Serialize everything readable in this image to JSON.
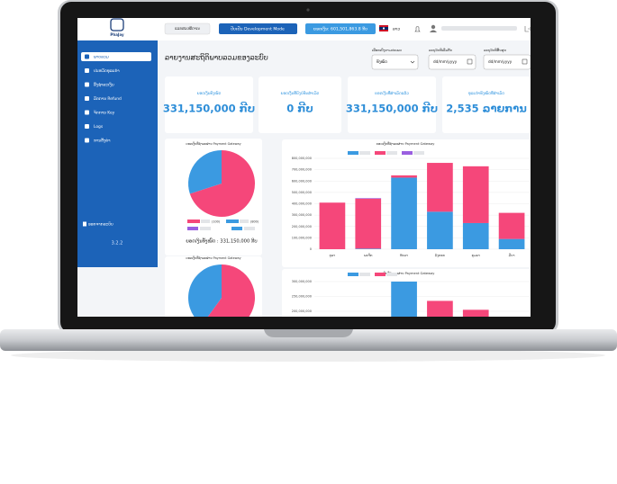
{
  "header": {
    "logo": "PhaJay",
    "back_button": "ແລກສະເໝີດາເນ",
    "mode_button": "ປັບເປັນ Development Mode",
    "balance": "ຍອດເງິນ: 601,501,863.8 ກີບ",
    "language": "ລາວ"
  },
  "sidebar": {
    "items": [
      "ພາບລວມ",
      "ປະຫວັດທຸລະກຳ",
      "ລິ້ງຊຳລະເງິນ",
      "ລັກການ Refund",
      "ຈັດການ Key",
      "Logs",
      "ການຕັ້ງຄ່າ"
    ],
    "logout": "ອອກຈາກລະບົບ",
    "version": "3.2.2"
  },
  "page": {
    "title": "ລາຍງານສະຖິຕິພາບລວມຂອງລະບົບ"
  },
  "filters": {
    "labels": [
      "ເລືອກເບິ່ງຕາມປະເພດ",
      "ລະບຸວັນທີເລີ່ມຕົ້ນ",
      "ລະບຸວັນທີສິ້ນສຸດ"
    ],
    "select": "ທັງໝົດ",
    "date_placeholder": "dd/mm/yyyy"
  },
  "cards": [
    {
      "label": "ຍອດເງິນທັງໝົດ",
      "value": "331,150,000 ກີບ"
    },
    {
      "label": "ຍອດເງິນທີ່ຍັງບໍ່ທັນສຳເລັດ",
      "value": "0 ກີບ"
    },
    {
      "label": "ຍອດເງິນທີ່ສຳເລັດແລ້ວ",
      "value": "331,150,000 ກີບ"
    },
    {
      "label": "ທຸລະກຳທັງໝົດທີ່ສຳເລັດ",
      "value": "2,535 ລາຍການ"
    }
  ],
  "pie_chart_1": {
    "type": "pie",
    "title": "ຍອດເງິນທີ່ຊຳລະຜ່ານ Payment Gateway",
    "legend_counts": [
      "(100)",
      "(800)"
    ],
    "colors": [
      "#f5477a",
      "#3b9ae1"
    ],
    "values": [
      70,
      30
    ],
    "total": "ຍອດເງິນທັງໝົດ : 331,150,000 ກີບ"
  },
  "pie_chart_2": {
    "type": "pie",
    "title": "ຍອດເງິນທີ່ຊຳລະຜ່ານ Payment Gateway",
    "colors": [
      "#f5477a",
      "#3b9ae1"
    ],
    "values": [
      60,
      40
    ]
  },
  "bar_chart_1": {
    "type": "bar",
    "title": "ຍອດເງິນທີ່ຊຳລະຜ່ານ Payment Gateway",
    "categories": [
      "ຕຸລາ",
      "ພະຈິກ",
      "ທັນວາ",
      "ມັງກອນ",
      "ກຸມພາ",
      "ມີນາ"
    ],
    "series": [
      {
        "color": "#3b9ae1",
        "values": [
          0,
          5000000,
          630000000,
          330000000,
          230000000,
          90000000
        ]
      },
      {
        "color": "#f5477a",
        "values": [
          410000000,
          440000000,
          20000000,
          430000000,
          500000000,
          230000000
        ]
      },
      {
        "color": "#9a5fe0",
        "values": [
          0,
          5000000,
          0,
          0,
          0,
          0
        ]
      }
    ],
    "ylim": [
      0,
      800000000
    ],
    "yticks": [
      0,
      {
        "value": 100000000,
        "label": "100,000,000"
      },
      {
        "value": 200000000,
        "label": "200,000,000"
      },
      {
        "value": 300000000,
        "label": "300,000,000"
      },
      {
        "value": 400000000,
        "label": "400,000,000"
      },
      {
        "value": 500000000,
        "label": "500,000,000"
      },
      {
        "value": 600000000,
        "label": "600,000,000"
      },
      {
        "value": 700000000,
        "label": "700,000,000"
      },
      {
        "value": 800000000,
        "label": "800,000,000"
      }
    ]
  },
  "bar_chart_2": {
    "type": "bar",
    "title": "ຍອດເງິນທີ່ຊຳລະຜ່ານ Payment Gateway",
    "series": [
      {
        "color": "#3b9ae1",
        "values": [
          null,
          null,
          300000000,
          null,
          null,
          null
        ]
      },
      {
        "color": "#f5477a",
        "values": [
          null,
          null,
          null,
          235000000,
          205000000,
          null
        ]
      }
    ],
    "ylim": [
      0,
      350000000
    ],
    "yticks": [
      {
        "value": 200000000,
        "label": "200,000,000"
      },
      {
        "value": 250000000,
        "label": "250,000,000"
      },
      {
        "value": 300000000,
        "label": "300,000,000"
      }
    ]
  }
}
